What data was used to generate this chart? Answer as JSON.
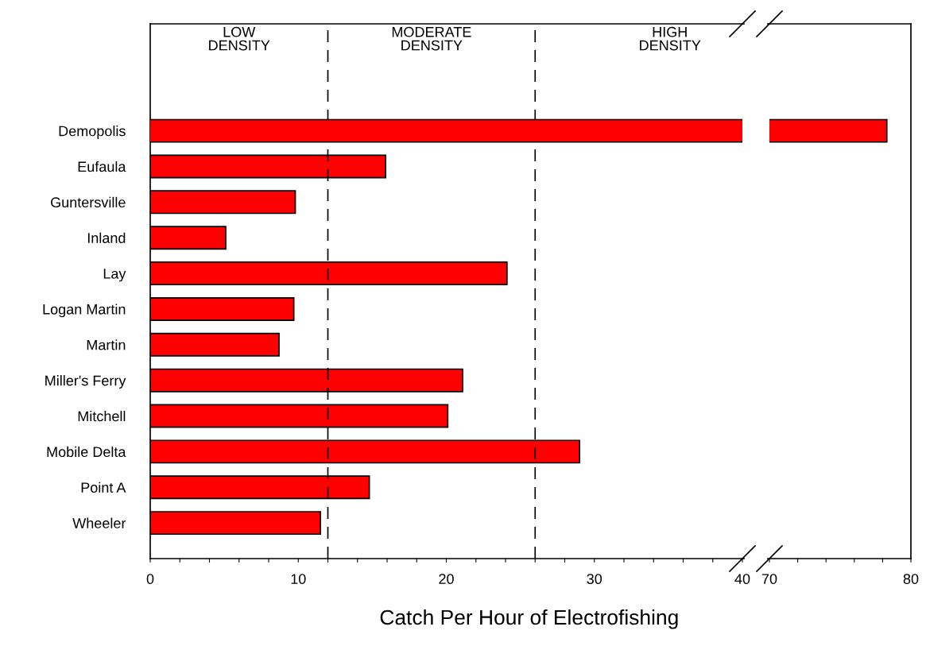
{
  "chart_data": [
    {
      "type": "bar",
      "orientation": "horizontal",
      "xlabel": "Catch Per Hour of Electrofishing",
      "categories": [
        "Demopolis",
        "Eufaula",
        "Guntersville",
        "Inland",
        "Lay",
        "Logan Martin",
        "Martin",
        "Miller's Ferry",
        "Mitchell",
        "Mobile Delta",
        "Point A",
        "Wheeler"
      ],
      "series": [
        {
          "color": "#ff0000",
          "values": [
            null,
            15.9,
            9.8,
            5.1,
            24.1,
            9.7,
            8.7,
            21.1,
            20.1,
            29.0,
            14.8,
            11.5
          ]
        }
      ],
      "xlim": [
        0,
        40
      ],
      "xticks": [
        0,
        {
          "value": 2,
          "label": null
        },
        {
          "value": 4,
          "label": null
        },
        {
          "value": 6,
          "label": null
        },
        {
          "value": 8,
          "label": null
        },
        10,
        {
          "value": 12,
          "label": null
        },
        {
          "value": 14,
          "label": null
        },
        {
          "value": 16,
          "label": null
        },
        {
          "value": 18,
          "label": null
        },
        20,
        {
          "value": 22,
          "label": null
        },
        {
          "value": 24,
          "label": null
        },
        {
          "value": 26,
          "label": null
        },
        {
          "value": 28,
          "label": null
        },
        30,
        {
          "value": 32,
          "label": null
        },
        {
          "value": 34,
          "label": null
        },
        {
          "value": 36,
          "label": null
        },
        {
          "value": 38,
          "label": null
        },
        40
      ],
      "annotations": [
        "LOW\nDENSITY",
        "MODERATE\nDENSITY",
        "HIGH\nDENSITY"
      ],
      "ref_lines": [
        {
          "axis": "x",
          "value": 12,
          "line_style": "dashed",
          "color": "#000000"
        },
        {
          "axis": "x",
          "value": 26,
          "line_style": "dashed",
          "color": "#000000"
        }
      ],
      "grid": false,
      "legend": false
    },
    {
      "type": "bar",
      "orientation": "horizontal",
      "categories": [
        null,
        null,
        null,
        null,
        null,
        null,
        null,
        null,
        null,
        null,
        null,
        null
      ],
      "series": [
        {
          "color": "#ff0000",
          "values": [
            78.3,
            null,
            null,
            null,
            null,
            null,
            null,
            null,
            null,
            null,
            null,
            null
          ]
        }
      ],
      "xlim": [
        70,
        80
      ],
      "xticks": [
        70,
        {
          "value": 72,
          "label": null
        },
        {
          "value": 74,
          "label": null
        },
        {
          "value": 76,
          "label": null
        },
        {
          "value": 78,
          "label": null
        },
        80
      ],
      "tick_labels": "x",
      "grid": false,
      "legend": false
    }
  ]
}
